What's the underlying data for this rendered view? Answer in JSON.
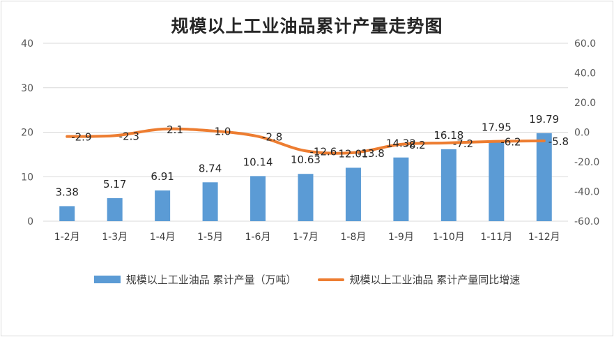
{
  "chart_data": {
    "type": "bar+line",
    "title": "规模以上工业油品累计产量走势图",
    "categories": [
      "1-2月",
      "1-3月",
      "1-4月",
      "1-5月",
      "1-6月",
      "1-7月",
      "1-8月",
      "1-9月",
      "1-10月",
      "1-11月",
      "1-12月"
    ],
    "series": [
      {
        "name": "规模以上工业油品 累计产量（万吨）",
        "type": "bar",
        "axis": "left",
        "values": [
          3.38,
          5.17,
          6.91,
          8.74,
          10.14,
          10.63,
          12.01,
          14.32,
          16.18,
          17.95,
          19.79
        ],
        "labels": [
          "3.38",
          "5.17",
          "6.91",
          "8.74",
          "10.14",
          "10.63",
          "12.01",
          "14.32",
          "16.18",
          "17.95",
          "19.79"
        ],
        "color": "#5b9bd5"
      },
      {
        "name": "规模以上工业油品 累计产量同比增速",
        "type": "line",
        "axis": "right",
        "values": [
          -2.9,
          -2.3,
          2.1,
          1.0,
          -2.8,
          -12.6,
          -13.8,
          -8.2,
          -7.2,
          -6.2,
          -5.8
        ],
        "labels": [
          "-2.9",
          "-2.3",
          "2.1",
          "1.0",
          "-2.8",
          "-12.6",
          "-13.8",
          "-8.2",
          "-7.2",
          "-6.2",
          "-5.8"
        ],
        "color": "#ed7d31"
      }
    ],
    "y_left": {
      "min": 0,
      "max": 40,
      "ticks": [
        "0",
        "10",
        "20",
        "30",
        "40"
      ]
    },
    "y_right": {
      "min": -60,
      "max": 60,
      "ticks": [
        "-60.0",
        "-40.0",
        "-20.0",
        "0.0",
        "20.0",
        "40.0",
        "60.0"
      ]
    },
    "grid": true,
    "legend_position": "bottom"
  }
}
